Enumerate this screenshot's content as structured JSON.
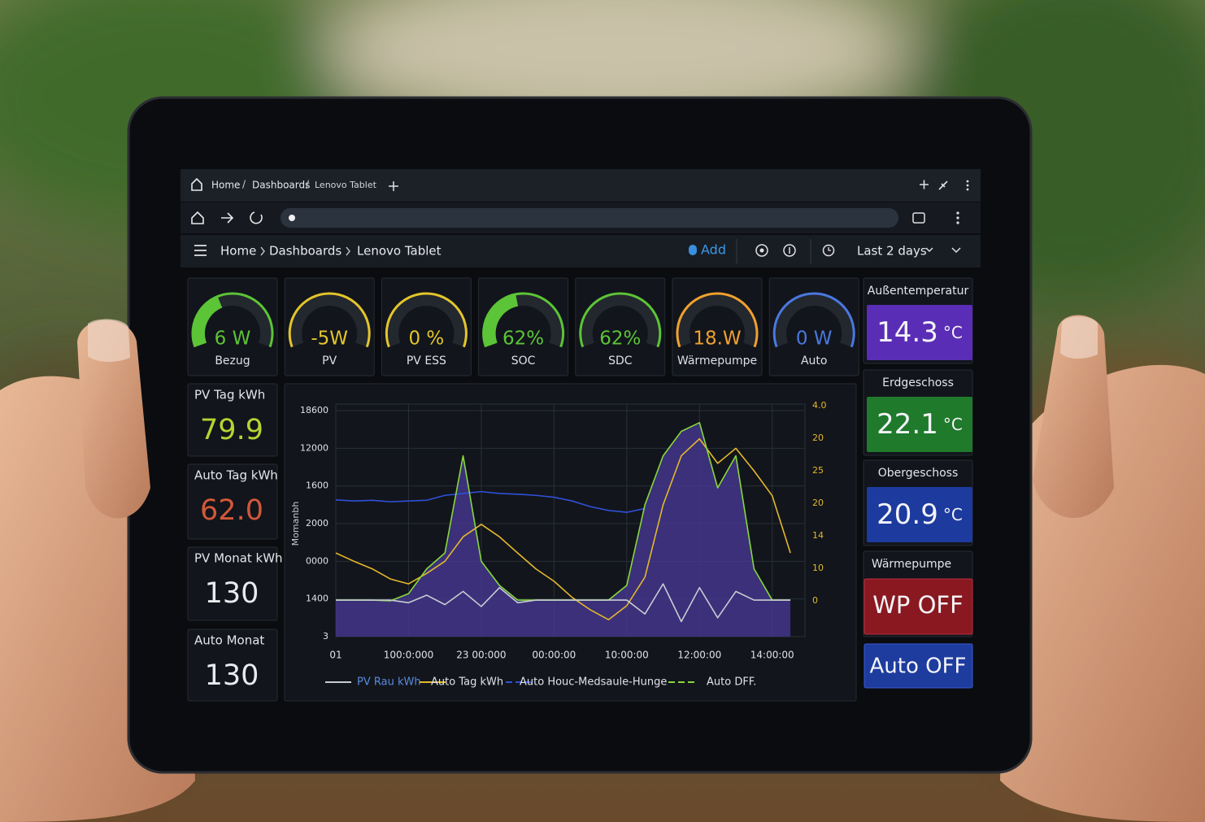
{
  "tab_bar": {
    "crumbs": [
      "Home",
      "Dashboards",
      "Lenovo Tablet"
    ],
    "separator": "/"
  },
  "toolbar": {
    "crumbs": [
      "Home",
      "Dashboards",
      "Lenovo Tablet"
    ],
    "add": "Add",
    "time_range": "Last 2 days"
  },
  "gauges": [
    {
      "value": "6 W",
      "label": "Bezug",
      "color": "#5cc437",
      "level": 40
    },
    {
      "value": "-5W",
      "label": "PV",
      "color": "#e3c52c",
      "level": 0
    },
    {
      "value": "0 %",
      "label": "PV ESS",
      "color": "#e3c52c",
      "level": 0
    },
    {
      "value": "62%",
      "label": "SOC",
      "color": "#5cc437",
      "level": 45
    },
    {
      "value": "62%",
      "label": "SDC",
      "color": "#5cc437",
      "level": 0
    },
    {
      "value": "18.W",
      "label": "Wärmepumpe",
      "color": "#f0a030",
      "level": 0
    },
    {
      "value": "0 W",
      "label": "Auto",
      "color": "#4a78e0",
      "level": 0
    }
  ],
  "stats": [
    {
      "title": "PV Tag kWh",
      "value": "79.9",
      "color": "#b7d433"
    },
    {
      "title": "Auto Tag kWh",
      "value": "62.0",
      "color": "#d2583a"
    },
    {
      "title": "PV Monat kWh",
      "value": "130",
      "color": "#e8eaee"
    },
    {
      "title": "Auto Monat",
      "value": "130",
      "color": "#e8eaee"
    }
  ],
  "temperatures": [
    {
      "title": "Außentemperatur",
      "value": "14.3",
      "unit": "°C",
      "color": "#5a2db6"
    },
    {
      "title": "Erdgeschoss",
      "value": "22.1",
      "unit": "°C",
      "color": "#1f7a2b"
    },
    {
      "title": "Obergeschoss",
      "value": "20.9",
      "unit": "°C",
      "color": "#1d3a9e"
    }
  ],
  "switches": [
    {
      "title": "Wärmepumpe",
      "value": "WP OFF",
      "color": "#8a1820"
    },
    {
      "value": "Auto OFF",
      "color": "#1d3c9e"
    }
  ],
  "chart_data": {
    "type": "line",
    "y_label": "Momanbh",
    "x": [
      0,
      0.25,
      0.5,
      0.75,
      1,
      1.25,
      1.5,
      1.75,
      2,
      2.25,
      2.5,
      2.75,
      3,
      3.25,
      3.5,
      3.75,
      4,
      4.25,
      4.5,
      4.75,
      5,
      5.25,
      5.5,
      5.75,
      6,
      6.25
    ],
    "xlim": [
      0,
      6.45
    ],
    "xticks": [
      {
        "value": 0,
        "label": "01"
      },
      {
        "value": 1,
        "label": "100:0:000"
      },
      {
        "value": 2,
        "label": "23 00:000"
      },
      {
        "value": 3,
        "label": "00:00:00"
      },
      {
        "value": 4,
        "label": "10:00:00"
      },
      {
        "value": 5,
        "label": "12:00:00"
      },
      {
        "value": 6,
        "label": "14:00:00"
      }
    ],
    "ylim": [
      0,
      6
    ],
    "yticks": [
      {
        "value": 0,
        "label": "3"
      },
      {
        "value": 1,
        "label": "1400"
      },
      {
        "value": 2,
        "label": "0000"
      },
      {
        "value": 3,
        "label": "2000"
      },
      {
        "value": 4,
        "label": "1600"
      },
      {
        "value": 5,
        "label": "12000"
      },
      {
        "value": 6,
        "label": "18600"
      }
    ],
    "y2lim": [
      -1.1,
      5.85
    ],
    "y2ticks": [
      {
        "value": 0,
        "label": "0"
      },
      {
        "value": 1,
        "label": "10"
      },
      {
        "value": 2,
        "label": "14"
      },
      {
        "value": 3,
        "label": "20"
      },
      {
        "value": 4,
        "label": "25"
      },
      {
        "value": 5,
        "label": "20"
      },
      {
        "value": 6,
        "label": "4.0"
      }
    ],
    "grid": true,
    "series": [
      {
        "name": "PV Rau kWh",
        "color": "#c8ccd4",
        "values": [
          0.97,
          0.97,
          0.97,
          0.97,
          0.9,
          1.1,
          0.85,
          1.2,
          0.8,
          1.3,
          0.9,
          0.97,
          0.97,
          0.97,
          0.97,
          0.97,
          0.97,
          0.6,
          1.4,
          0.4,
          1.3,
          0.5,
          1.2,
          0.97,
          0.97,
          0.97
        ]
      },
      {
        "name": "Auto Tag kWh",
        "color": "#e3b82c",
        "values": [
          2.22,
          2.0,
          1.8,
          1.53,
          1.4,
          1.68,
          2.0,
          2.65,
          2.98,
          2.65,
          2.22,
          1.8,
          1.47,
          1.04,
          0.71,
          0.45,
          0.82,
          1.58,
          3.5,
          4.8,
          5.25,
          4.6,
          5.0,
          4.4,
          3.74,
          2.22
        ]
      },
      {
        "name": "Auto Houc-Medsaule-Hunge",
        "color": "#3050d8",
        "values": [
          3.63,
          3.6,
          3.62,
          3.58,
          3.6,
          3.62,
          3.75,
          3.8,
          3.85,
          3.8,
          3.78,
          3.75,
          3.7,
          3.6,
          3.45,
          3.35,
          3.3,
          3.4,
          null,
          null,
          null,
          null,
          null,
          null,
          null,
          null
        ]
      },
      {
        "name": "Auto DFF.",
        "color": "#86d83c",
        "area_color": "#4a3a9a",
        "values": [
          0.97,
          0.97,
          0.97,
          0.95,
          1.14,
          1.8,
          2.22,
          4.8,
          2.0,
          1.36,
          0.97,
          0.97,
          0.97,
          0.97,
          0.97,
          0.97,
          1.36,
          3.5,
          4.8,
          5.45,
          5.68,
          3.95,
          4.8,
          1.8,
          0.97,
          0.97
        ]
      }
    ]
  }
}
